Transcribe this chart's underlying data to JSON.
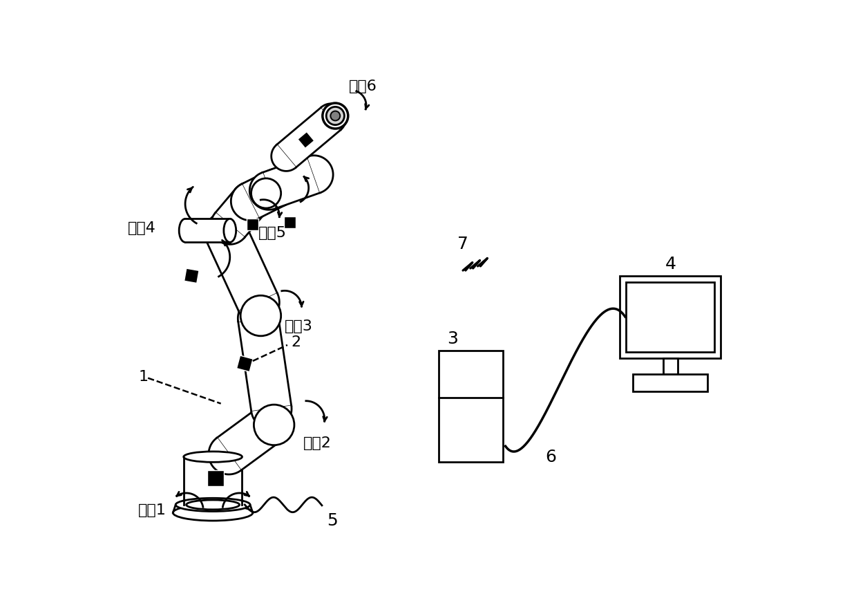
{
  "bg_color": "#ffffff",
  "lw": 2.0,
  "labels": {
    "joint1": "关劂1",
    "joint2": "关劂2",
    "joint3": "关劂3",
    "joint4": "关劂4",
    "joint5": "关劂5",
    "joint6": "关劂6",
    "num1": "1",
    "num2": "2",
    "num3": "3",
    "num4": "4",
    "num5": "5",
    "num6": "6",
    "num7": "7"
  },
  "font_size": 16
}
